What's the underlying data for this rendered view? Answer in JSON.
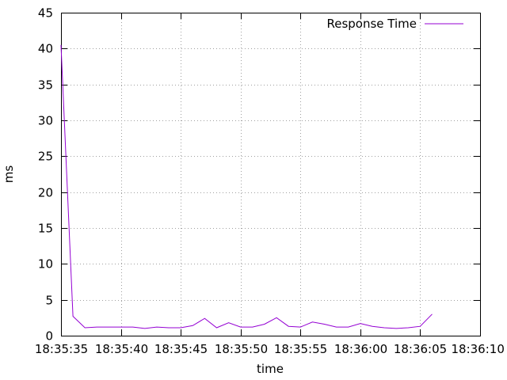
{
  "chart_data": {
    "type": "line",
    "xlabel": "time",
    "ylabel": "ms",
    "xlim": [
      "18:35:35",
      "18:36:10"
    ],
    "ylim": [
      0,
      45
    ],
    "x_ticks": [
      "18:35:35",
      "18:35:40",
      "18:35:45",
      "18:35:50",
      "18:35:55",
      "18:36:00",
      "18:36:05",
      "18:36:10"
    ],
    "y_ticks": [
      0,
      5,
      10,
      15,
      20,
      25,
      30,
      35,
      40,
      45
    ],
    "grid": true,
    "legend_position": "top-right",
    "series": [
      {
        "name": "Response Time",
        "color": "#9400d3",
        "x": [
          "18:35:35",
          "18:35:36",
          "18:35:37",
          "18:35:38",
          "18:35:39",
          "18:35:40",
          "18:35:41",
          "18:35:42",
          "18:35:43",
          "18:35:44",
          "18:35:45",
          "18:35:46",
          "18:35:47",
          "18:35:48",
          "18:35:49",
          "18:35:50",
          "18:35:51",
          "18:35:52",
          "18:35:53",
          "18:35:54",
          "18:35:55",
          "18:35:56",
          "18:35:57",
          "18:35:58",
          "18:35:59",
          "18:36:00",
          "18:36:01",
          "18:36:02",
          "18:36:03",
          "18:36:04",
          "18:36:05",
          "18:36:06"
        ],
        "y": [
          40.5,
          2.7,
          1.1,
          1.2,
          1.2,
          1.2,
          1.2,
          1.0,
          1.2,
          1.1,
          1.1,
          1.4,
          2.4,
          1.1,
          1.8,
          1.2,
          1.2,
          1.6,
          2.5,
          1.3,
          1.2,
          1.9,
          1.6,
          1.2,
          1.2,
          1.7,
          1.3,
          1.1,
          1.0,
          1.1,
          1.3,
          3.0
        ]
      }
    ]
  }
}
